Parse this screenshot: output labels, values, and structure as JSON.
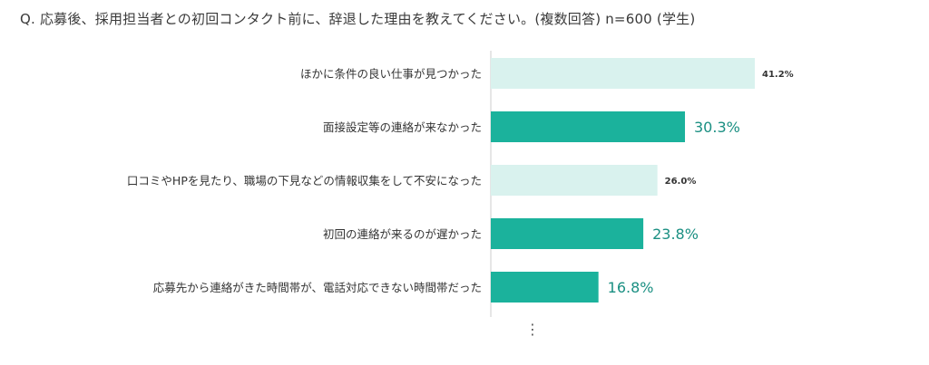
{
  "title": "Q. 応募後、採用担当者との初回コンタクト前に、辞退した理由を教えてください。(複数回答) n=600 (学生)",
  "more_indicator": "⋮",
  "colors": {
    "accent": "#1bb29c",
    "light": "#d9f2ee",
    "accent_text": "#1a8f82",
    "label_text": "#333333",
    "axis": "#cccccc"
  },
  "chart_data": {
    "type": "bar",
    "orientation": "horizontal",
    "categories": [
      "ほかに条件の良い仕事が見つかった",
      "面接設定等の連絡が来なかった",
      "口コミやHPを見たり、職場の下見などの情報収集をして不安になった",
      "初回の連絡が来るのが遅かった",
      "応募先から連絡がきた時間帯が、電話対応できない時間帯だった"
    ],
    "values": [
      41.2,
      30.3,
      26.0,
      23.8,
      16.8
    ],
    "value_labels": [
      "41.2%",
      "30.3%",
      "26.0%",
      "23.8%",
      "16.8%"
    ],
    "highlight": [
      false,
      true,
      false,
      true,
      true
    ],
    "xlim": [
      0,
      41.2
    ],
    "xlabel": "",
    "ylabel": "",
    "grid": false
  }
}
